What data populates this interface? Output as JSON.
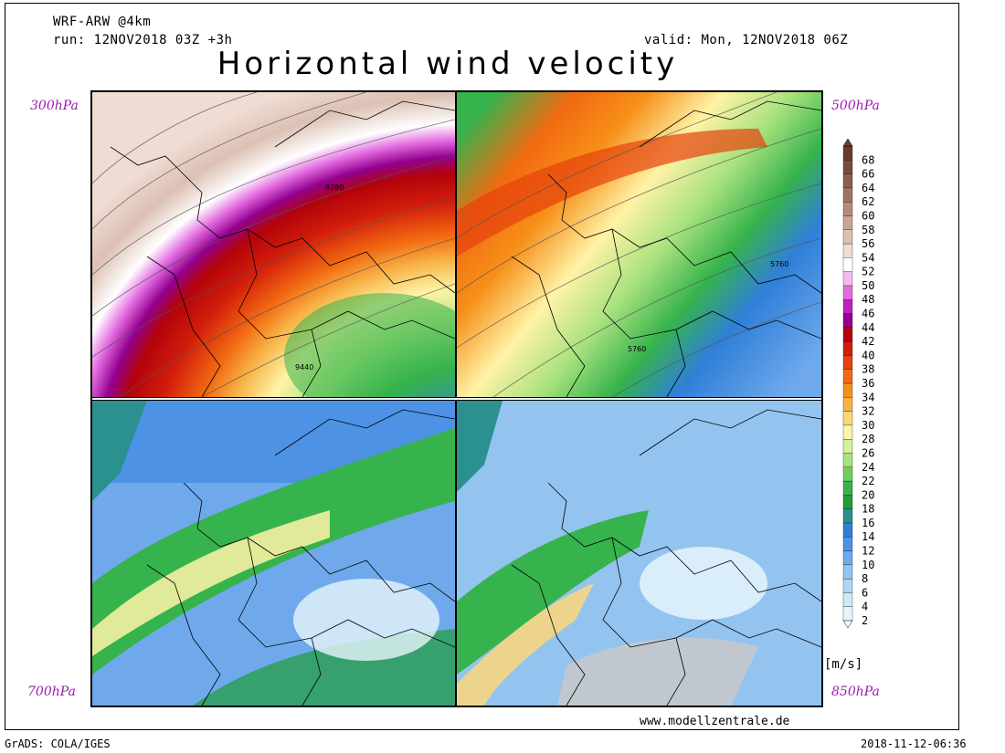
{
  "header": {
    "model": "WRF-ARW @4km",
    "run": "run: 12NOV2018 03Z +3h",
    "valid": "valid: Mon, 12NOV2018 06Z",
    "title": "Horizontal wind velocity"
  },
  "panels": [
    {
      "label": "300hPa",
      "contours": [
        "9280",
        "9440"
      ]
    },
    {
      "label": "500hPa",
      "contours": [
        "5760",
        "5760"
      ]
    },
    {
      "label": "700hPa",
      "contours": []
    },
    {
      "label": "850hPa",
      "contours": []
    }
  ],
  "colorbar": {
    "units": "[m/s]",
    "ticks": [
      "2",
      "4",
      "6",
      "8",
      "10",
      "12",
      "14",
      "16",
      "18",
      "20",
      "22",
      "24",
      "26",
      "28",
      "30",
      "32",
      "34",
      "36",
      "38",
      "40",
      "42",
      "44",
      "46",
      "48",
      "50",
      "52",
      "54",
      "56",
      "58",
      "60",
      "62",
      "64",
      "66",
      "68"
    ],
    "colors": [
      "#e6f5fb",
      "#c8eaf6",
      "#aed8f2",
      "#93c4ef",
      "#6fa9ec",
      "#4d92e5",
      "#2f7fd8",
      "#2a9090",
      "#1f9d3a",
      "#36b34c",
      "#6fcf5e",
      "#a8e27e",
      "#d6f09e",
      "#fff3a6",
      "#fbd77b",
      "#f7b346",
      "#f69019",
      "#f26a11",
      "#e5420d",
      "#d21d0b",
      "#b3030b",
      "#93008e",
      "#c21fc7",
      "#e36be0",
      "#f0bcf0",
      "#ffffff",
      "#efdcd3",
      "#dcc0b3",
      "#cba495",
      "#b68a7a",
      "#a17363",
      "#8d5e4e",
      "#7a4a3c",
      "#6a3a2e"
    ]
  },
  "footer": {
    "url": "www.modellzentrale.de",
    "software": "GrADS: COLA/IGES",
    "timestamp": "2018-11-12-06:36"
  }
}
